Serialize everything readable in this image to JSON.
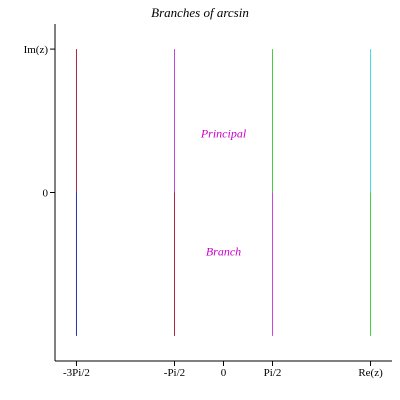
{
  "chart_data": {
    "type": "line",
    "title": "Branches of arcsin",
    "x_ticks": [
      {
        "value": -4.712,
        "label": "-3Pi/2"
      },
      {
        "value": -1.5708,
        "label": "-Pi/2"
      },
      {
        "value": 0,
        "label": "0"
      },
      {
        "value": 1.5708,
        "label": "Pi/2"
      },
      {
        "value": 4.712,
        "label": "Re(z)"
      }
    ],
    "y_ticks": [
      {
        "value": 0,
        "label": "0"
      },
      {
        "value": 2,
        "label": "Im(z)"
      }
    ],
    "xlim": [
      -5.4,
      5.4
    ],
    "ylim": [
      -2.35,
      2.35
    ],
    "grid": false,
    "annotations": [
      {
        "text": "Principal",
        "x": 0,
        "y": 0.82,
        "color": "#cc00cc"
      },
      {
        "text": "Branch",
        "x": 0,
        "y": -0.82,
        "color": "#cc00cc"
      }
    ],
    "segments": [
      {
        "x": -4.712,
        "y": [
          0,
          2
        ],
        "color": "#aa2244"
      },
      {
        "x": -4.712,
        "y": [
          -2,
          0
        ],
        "color": "#2233aa"
      },
      {
        "x": -1.5708,
        "y": [
          0,
          2
        ],
        "color": "#bb44dd"
      },
      {
        "x": -1.5708,
        "y": [
          -2,
          0
        ],
        "color": "#aa2244"
      },
      {
        "x": 1.5708,
        "y": [
          0,
          2
        ],
        "color": "#44cc44"
      },
      {
        "x": 1.5708,
        "y": [
          -2,
          0
        ],
        "color": "#cc44dd"
      },
      {
        "x": 4.712,
        "y": [
          0,
          2
        ],
        "color": "#44dddd"
      },
      {
        "x": 4.712,
        "y": [
          -2,
          0
        ],
        "color": "#44cc44"
      }
    ]
  }
}
